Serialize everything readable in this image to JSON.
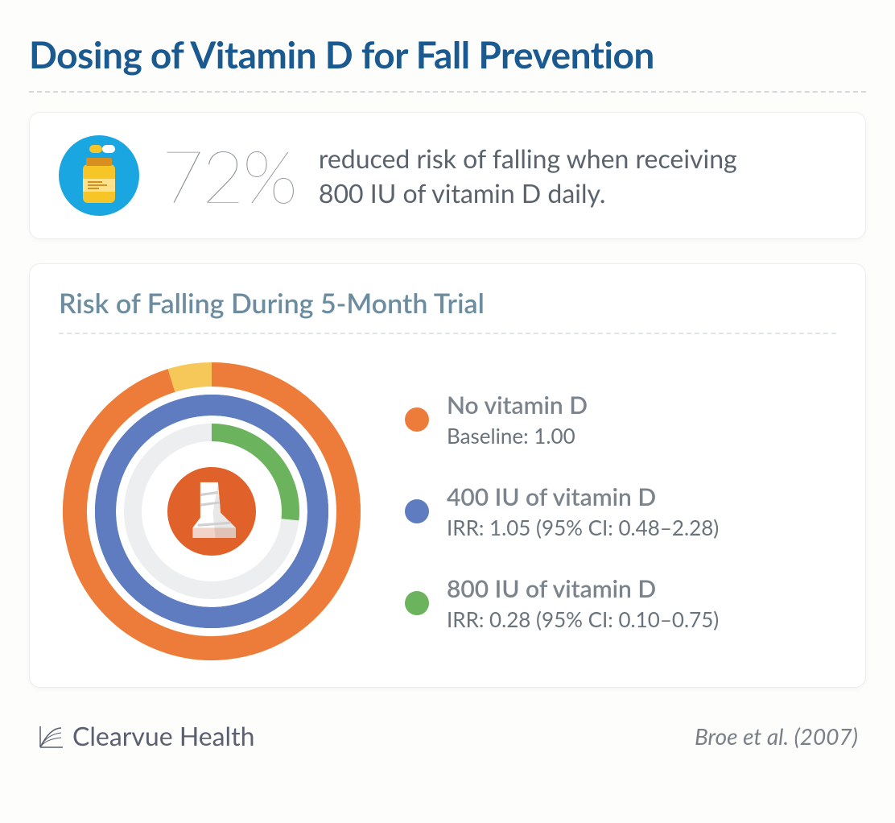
{
  "title": "Dosing of Vitamin D for Fall Prevention",
  "colors": {
    "title": "#1a5a90",
    "card_bg": "#ffffff",
    "page_bg": "#fdfdfb",
    "divider": "#d5d8db",
    "text_muted": "#8a9199",
    "text_body": "#5a636d",
    "chart_title": "#6c8ca0"
  },
  "stat": {
    "value": "72%",
    "description": "reduced risk of falling when receiving 800 IU of vitamin D daily.",
    "icon_bg": "#1aa6e0",
    "icon_bottle": "#f6c527",
    "icon_pill_left": "#ffffff",
    "icon_pill_right": "#f6c527"
  },
  "chart": {
    "title": "Risk of Falling During 5-Month Trial",
    "type": "radial-gauge-multi",
    "max_value": 1.05,
    "center_icon_bg": "#e0622a",
    "center_icon_fg": "#ffffff",
    "rings": [
      {
        "label": "No vitamin D",
        "value_text": "Baseline: 1.00",
        "value": 1.0,
        "color": "#ed7c3a",
        "track_color": "#f6c85a",
        "radius": 170,
        "stroke_width": 30
      },
      {
        "label": "400 IU of vitamin D",
        "value_text": "IRR: 1.05 (95% CI: 0.48–2.28)",
        "value": 1.05,
        "color": "#5e7cbf",
        "track_color": "#2a7fb8",
        "radius": 132,
        "stroke_width": 26
      },
      {
        "label": "800 IU of vitamin D",
        "value_text": "IRR: 0.28 (95% CI: 0.10–0.75)",
        "value": 0.28,
        "color": "#6bb35c",
        "track_color": "#eceeef",
        "radius": 98,
        "stroke_width": 22
      }
    ]
  },
  "footer": {
    "brand": "Clearvue Health",
    "brand_color": "#5a5f72",
    "citation": "Broe et al. (2007)"
  }
}
